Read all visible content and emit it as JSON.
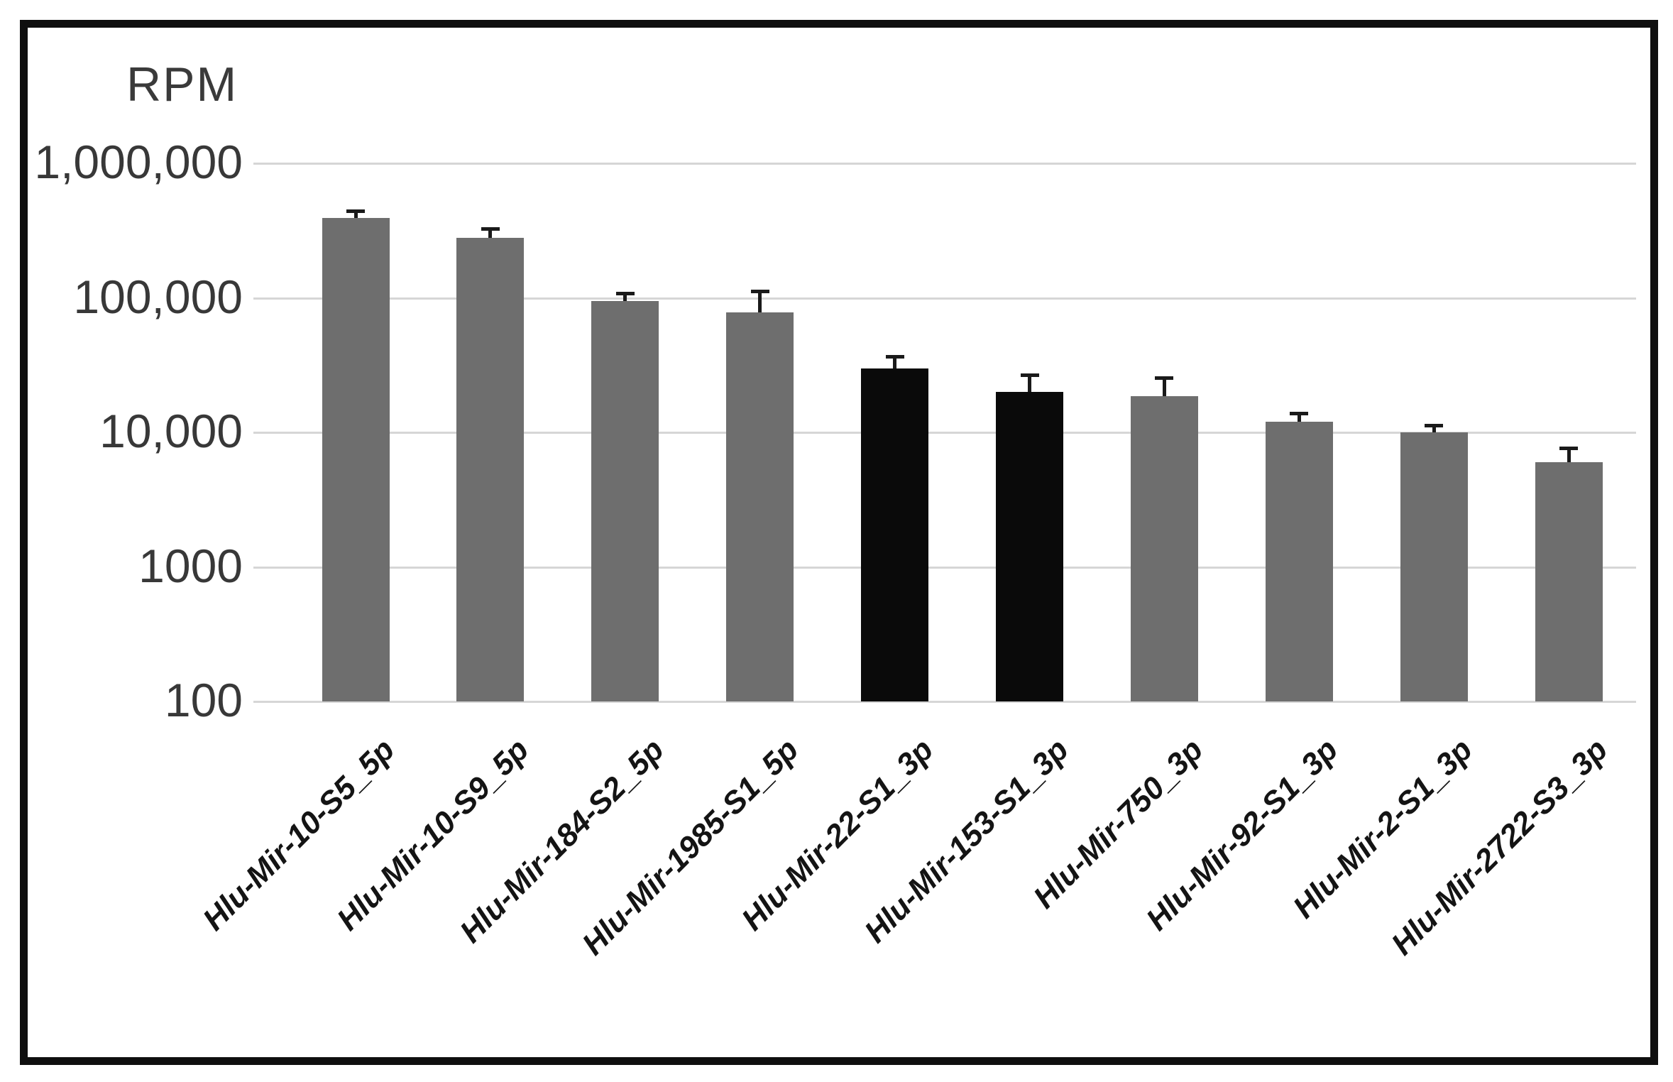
{
  "figure": {
    "background": "#ffffff",
    "frame_color": "#0f0f0f"
  },
  "palette": {
    "gray_bar": "#6e6e6e",
    "black_bar": "#0a0a0a",
    "gridline": "#d6d6d6",
    "axis_text": "#383838",
    "category_text": "#141414",
    "error_bar": "#1a1a1a"
  },
  "chart_data": {
    "type": "bar",
    "title": "",
    "ylabel": "RPM",
    "xlabel": "",
    "scale": "log10",
    "ylim": [
      100,
      1000000
    ],
    "grid": true,
    "legend": "none",
    "y_ticks": [
      {
        "value": 1000000,
        "label": "1,000,000"
      },
      {
        "value": 100000,
        "label": "100,000"
      },
      {
        "value": 10000,
        "label": "10,000"
      },
      {
        "value": 1000,
        "label": "1000"
      },
      {
        "value": 100,
        "label": "100"
      }
    ],
    "categories": [
      "Hlu-Mir-10-S5_5p",
      "Hlu-Mir-10-S9_5p",
      "Hlu-Mir-184-S2_5p",
      "Hlu-Mir-1985-S1_5p",
      "Hlu-Mir-22-S1_3p",
      "Hlu-Mir-153-S1_3p",
      "Hlu-Mir-750_3p",
      "Hlu-Mir-92-S1_3p",
      "Hlu-Mir-2-S1_3p",
      "Hlu-Mir-2722-S3_3p"
    ],
    "series": [
      {
        "name": "RPM",
        "values": [
          390000,
          280000,
          95000,
          78000,
          30000,
          20000,
          18500,
          12000,
          10000,
          6000
        ],
        "error_upper_top": [
          430000,
          320000,
          105000,
          110000,
          36000,
          26000,
          25000,
          13500,
          11000,
          7500
        ],
        "bar_color_keys": [
          "gray",
          "gray",
          "gray",
          "gray",
          "black",
          "black",
          "gray",
          "gray",
          "gray",
          "gray"
        ]
      }
    ]
  }
}
